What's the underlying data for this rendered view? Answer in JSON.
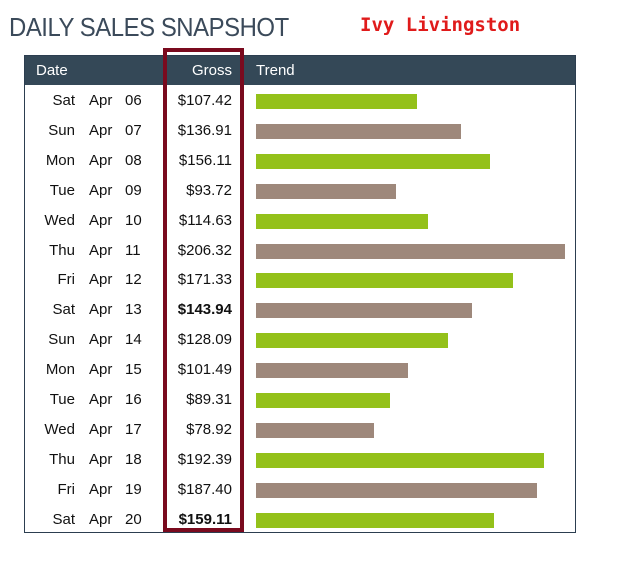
{
  "title": "DAILY SALES SNAPSHOT",
  "author": "Ivy Livingston",
  "colors": {
    "green": "#94c11a",
    "taupe": "#9e887b",
    "header_bg": "#344857",
    "highlight_border": "#7a0a1e",
    "author_red": "#e01b1b"
  },
  "chart_data": {
    "type": "table",
    "columns": [
      "Date",
      "Gross",
      "Trend"
    ],
    "bar_max": 206.32,
    "rows": [
      {
        "dow": "Sat",
        "month": "Apr",
        "day": "06",
        "gross": 107.42,
        "gross_label": "$107.42",
        "bold": false,
        "color": "green"
      },
      {
        "dow": "Sun",
        "month": "Apr",
        "day": "07",
        "gross": 136.91,
        "gross_label": "$136.91",
        "bold": false,
        "color": "taupe"
      },
      {
        "dow": "Mon",
        "month": "Apr",
        "day": "08",
        "gross": 156.11,
        "gross_label": "$156.11",
        "bold": false,
        "color": "green"
      },
      {
        "dow": "Tue",
        "month": "Apr",
        "day": "09",
        "gross": 93.72,
        "gross_label": "$93.72",
        "bold": false,
        "color": "taupe"
      },
      {
        "dow": "Wed",
        "month": "Apr",
        "day": "10",
        "gross": 114.63,
        "gross_label": "$114.63",
        "bold": false,
        "color": "green"
      },
      {
        "dow": "Thu",
        "month": "Apr",
        "day": "11",
        "gross": 206.32,
        "gross_label": "$206.32",
        "bold": false,
        "color": "taupe"
      },
      {
        "dow": "Fri",
        "month": "Apr",
        "day": "12",
        "gross": 171.33,
        "gross_label": "$171.33",
        "bold": false,
        "color": "green"
      },
      {
        "dow": "Sat",
        "month": "Apr",
        "day": "13",
        "gross": 143.94,
        "gross_label": "$143.94",
        "bold": true,
        "color": "taupe"
      },
      {
        "dow": "Sun",
        "month": "Apr",
        "day": "14",
        "gross": 128.09,
        "gross_label": "$128.09",
        "bold": false,
        "color": "green"
      },
      {
        "dow": "Mon",
        "month": "Apr",
        "day": "15",
        "gross": 101.49,
        "gross_label": "$101.49",
        "bold": false,
        "color": "taupe"
      },
      {
        "dow": "Tue",
        "month": "Apr",
        "day": "16",
        "gross": 89.31,
        "gross_label": "$89.31",
        "bold": false,
        "color": "green"
      },
      {
        "dow": "Wed",
        "month": "Apr",
        "day": "17",
        "gross": 78.92,
        "gross_label": "$78.92",
        "bold": false,
        "color": "taupe"
      },
      {
        "dow": "Thu",
        "month": "Apr",
        "day": "18",
        "gross": 192.39,
        "gross_label": "$192.39",
        "bold": false,
        "color": "green"
      },
      {
        "dow": "Fri",
        "month": "Apr",
        "day": "19",
        "gross": 187.4,
        "gross_label": "$187.40",
        "bold": false,
        "color": "taupe"
      },
      {
        "dow": "Sat",
        "month": "Apr",
        "day": "20",
        "gross": 159.11,
        "gross_label": "$159.11",
        "bold": true,
        "color": "green"
      }
    ]
  }
}
